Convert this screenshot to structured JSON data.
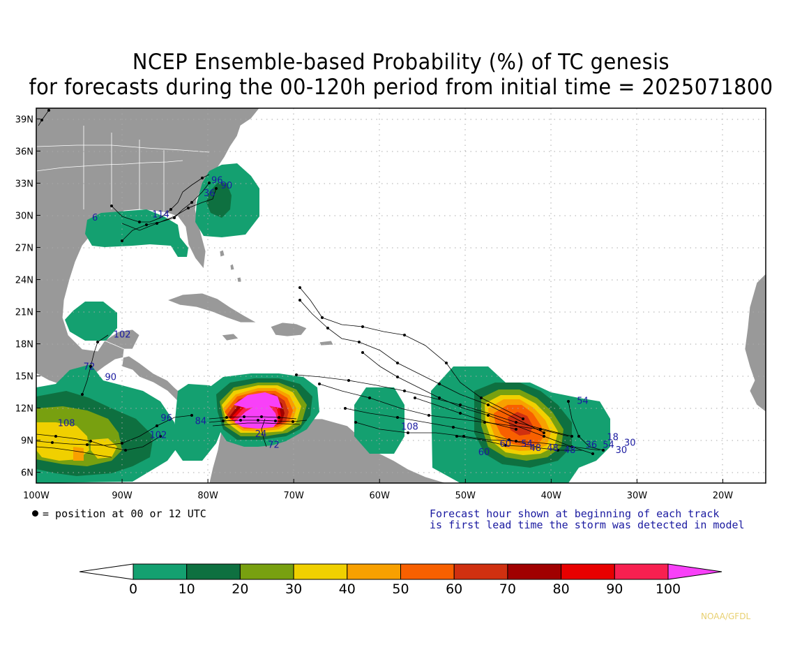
{
  "title": {
    "line1": "NCEP Ensemble-based Probability (%) of TC genesis",
    "line2": "for forecasts during the 00-120h period from initial time = 2025071800"
  },
  "map": {
    "lon_range": [
      -100,
      -15
    ],
    "lat_range": [
      5,
      40
    ],
    "lon_ticks": [
      "100W",
      "90W",
      "80W",
      "70W",
      "60W",
      "50W",
      "40W",
      "30W",
      "20W"
    ],
    "lat_ticks": [
      "6N",
      "9N",
      "12N",
      "15N",
      "18N",
      "21N",
      "24N",
      "27N",
      "30N",
      "33N",
      "36N",
      "39N"
    ],
    "land_color": "#999999",
    "ocean_color": "#ffffff",
    "grid": "dotted"
  },
  "probability_areas": [
    {
      "region": "gulf-coast",
      "max_prob": 10
    },
    {
      "region": "southeast-us-coast",
      "max_prob": 20
    },
    {
      "region": "bay-of-campeche",
      "max_prob": 10
    },
    {
      "region": "eastern-pacific-west",
      "max_prob": 40
    },
    {
      "region": "eastern-pacific-east",
      "max_prob": 20
    },
    {
      "region": "southwest-caribbean",
      "max_prob": 100
    },
    {
      "region": "central-atlantic-west",
      "max_prob": 10
    },
    {
      "region": "central-atlantic-east",
      "max_prob": 60
    }
  ],
  "track_labels": [
    {
      "text": "6",
      "lon": -93.5,
      "lat": 29.5
    },
    {
      "text": "114",
      "lon": -86.5,
      "lat": 29.8
    },
    {
      "text": "96",
      "lon": -79.6,
      "lat": 33.0
    },
    {
      "text": "90",
      "lon": -78.5,
      "lat": 32.5
    },
    {
      "text": "36",
      "lon": -80.5,
      "lat": 31.8
    },
    {
      "text": "102",
      "lon": -91.0,
      "lat": 18.6
    },
    {
      "text": "72",
      "lon": -94.5,
      "lat": 15.6
    },
    {
      "text": "90",
      "lon": -92.0,
      "lat": 14.6
    },
    {
      "text": "108",
      "lon": -97.5,
      "lat": 10.3
    },
    {
      "text": "96",
      "lon": -85.5,
      "lat": 10.8
    },
    {
      "text": "84",
      "lon": -81.5,
      "lat": 10.5
    },
    {
      "text": "102",
      "lon": -86.8,
      "lat": 9.2
    },
    {
      "text": "72",
      "lon": -73.0,
      "lat": 8.3
    },
    {
      "text": "24",
      "lon": -74.5,
      "lat": 9.3
    },
    {
      "text": "108",
      "lon": -57.5,
      "lat": 10.0
    },
    {
      "text": "60",
      "lon": -48.5,
      "lat": 7.6
    },
    {
      "text": "60",
      "lon": -46.0,
      "lat": 8.4
    },
    {
      "text": "54",
      "lon": -43.5,
      "lat": 8.4
    },
    {
      "text": "48",
      "lon": -42.5,
      "lat": 8.0
    },
    {
      "text": "48",
      "lon": -40.5,
      "lat": 8.0
    },
    {
      "text": "54",
      "lon": -37.0,
      "lat": 12.4
    },
    {
      "text": "18",
      "lon": -33.5,
      "lat": 9.0
    },
    {
      "text": "30",
      "lon": -31.5,
      "lat": 8.5
    },
    {
      "text": "30",
      "lon": -32.5,
      "lat": 7.8
    },
    {
      "text": "48",
      "lon": -38.5,
      "lat": 7.8
    },
    {
      "text": "36",
      "lon": -36.0,
      "lat": 8.3
    },
    {
      "text": "54",
      "lon": -34.0,
      "lat": 8.3
    }
  ],
  "notes": {
    "dot_legend": "= position at 00 or 12 UTC",
    "forecast_hour_line1": "Forecast hour shown at beginning of each track",
    "forecast_hour_line2": "is first lead time the storm was detected in model"
  },
  "colorbar": {
    "ticks": [
      "0",
      "10",
      "20",
      "30",
      "40",
      "50",
      "60",
      "70",
      "80",
      "90",
      "100"
    ],
    "colors": [
      "#14a070",
      "#0e7040",
      "#78a010",
      "#f0d000",
      "#f8a000",
      "#f86000",
      "#d03010",
      "#a00000",
      "#e80000",
      "#f82050"
    ],
    "below_color": "#ffffff",
    "above_color": "#f840f8"
  },
  "credit": "NOAA/GFDL"
}
